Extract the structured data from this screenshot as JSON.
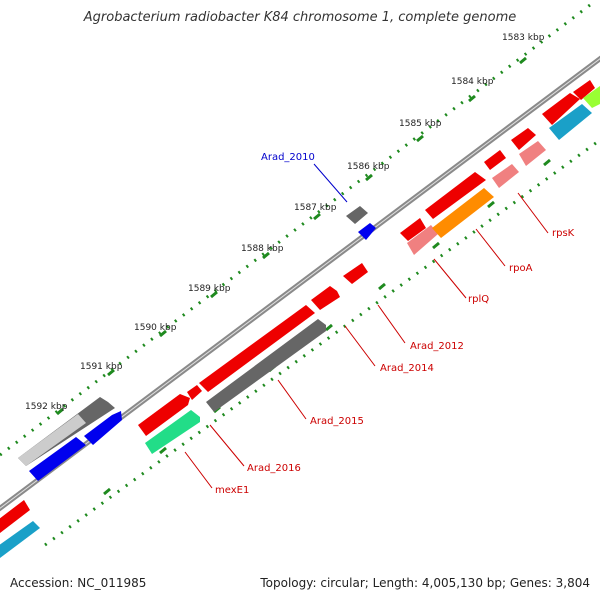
{
  "title": "Agrobacterium radiobacter K84 chromosome 1, complete genome",
  "accession": "Accession: NC_011985",
  "topology": "Topology: circular; Length: 4,005,130 bp; Genes: 3,804",
  "kbp_labels": [
    "1583 kbp",
    "1584 kbp",
    "1585 kbp",
    "1586 kbp",
    "1587 kbp",
    "1588 kbp",
    "1589 kbp",
    "1590 kbp",
    "1591 kbp",
    "1592 kbp"
  ],
  "gene_labels": [
    {
      "id": "arad_2010",
      "text": "Arad_2010",
      "color": "#0000cc"
    },
    {
      "id": "rpsk",
      "text": "rpsK",
      "color": "#cc0000"
    },
    {
      "id": "rpoa",
      "text": "rpoA",
      "color": "#cc0000"
    },
    {
      "id": "rplq",
      "text": "rplQ",
      "color": "#cc0000"
    },
    {
      "id": "arad_2012",
      "text": "Arad_2012",
      "color": "#cc0000"
    },
    {
      "id": "arad_2014",
      "text": "Arad_2014",
      "color": "#cc0000"
    },
    {
      "id": "arad_2015",
      "text": "Arad_2015",
      "color": "#cc0000"
    },
    {
      "id": "arad_2016",
      "text": "Arad_2016",
      "color": "#cc0000"
    },
    {
      "id": "mexe1",
      "text": "mexE1",
      "color": "#cc0000"
    }
  ],
  "colors": {
    "backbone": "#8a8a8a",
    "ruler_dots": "#1f8a1f",
    "cds_red": "#ee0000",
    "rrna_pink": "#f08080",
    "gene_grey": "#666666",
    "gene_blue": "#0000ee",
    "rpoa_orange": "#ff8c00",
    "mexe1_green": "#22dd88",
    "teal": "#1aa0c8",
    "lime": "#99ff33",
    "light_grey": "#cccccc"
  }
}
